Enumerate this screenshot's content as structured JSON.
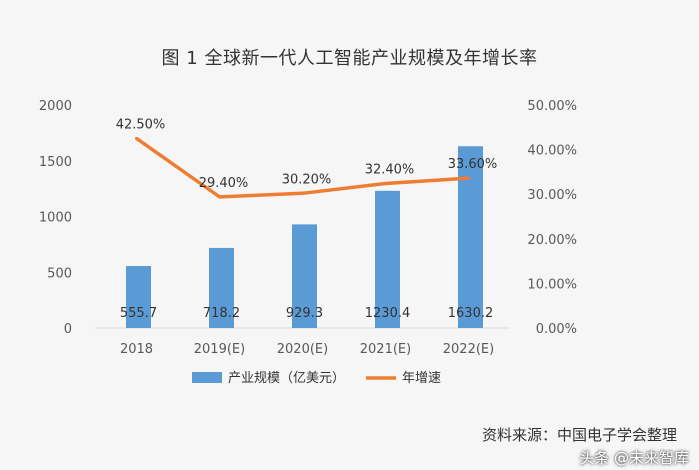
{
  "title": "图 1  全球新一代人工智能产业规模及年增长率",
  "source": "资料来源：中国电子学会整理",
  "watermark": "头条 @未来智库",
  "colors": {
    "bar": "#5b9bd5",
    "line": "#ed7d31",
    "text": "#333333",
    "axis": "#595959",
    "background": "#f6f6f7"
  },
  "chart_data": {
    "type": "bar",
    "categories": [
      "2018",
      "2019(E)",
      "2020(E)",
      "2021(E)",
      "2022(E)"
    ],
    "series": [
      {
        "name": "产业规模（亿美元）",
        "type": "bar",
        "axis": "left",
        "values": [
          555.7,
          718.2,
          929.3,
          1230.4,
          1630.2
        ],
        "labels": [
          "555.7",
          "718.2",
          "929.3",
          "1230.4",
          "1630.2"
        ]
      },
      {
        "name": "年增速",
        "type": "line",
        "axis": "right",
        "values": [
          42.5,
          29.4,
          30.2,
          32.4,
          33.6
        ],
        "labels": [
          "42.50%",
          "29.40%",
          "30.20%",
          "32.40%",
          "33.60%"
        ]
      }
    ],
    "y_left": {
      "ylim": [
        0,
        2000
      ],
      "ticks": [
        0,
        500,
        1000,
        1500,
        2000
      ],
      "tick_labels": [
        "0",
        "500",
        "1000",
        "1500",
        "2000"
      ]
    },
    "y_right": {
      "ylim": [
        0,
        50
      ],
      "ticks": [
        0,
        10,
        20,
        30,
        40,
        50
      ],
      "tick_labels": [
        "0.00%",
        "10.00%",
        "20.00%",
        "30.00%",
        "40.00%",
        "50.00%"
      ]
    },
    "grid": false,
    "legend_position": "bottom"
  }
}
